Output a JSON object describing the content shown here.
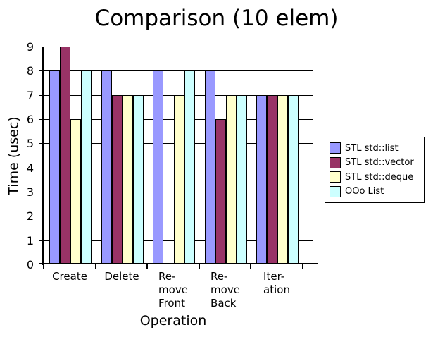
{
  "title": "Comparison (10 elem)",
  "axes": {
    "y_ticks": [
      "9",
      "8",
      "7",
      "6",
      "5",
      "4",
      "3",
      "2",
      "1",
      "0"
    ]
  },
  "chart_data": {
    "type": "bar",
    "title": "Comparison (10 elem)",
    "xlabel": "Operation",
    "ylabel": "Time (usec)",
    "ylim": [
      0,
      9
    ],
    "y_tick_step": 1,
    "grid": true,
    "legend_position": "right",
    "categories": [
      "Create",
      "Delete",
      "Re-\nmove\nFront",
      "Re-\nmove\nBack",
      "Iter-\nation"
    ],
    "categories_full": [
      "Create",
      "Delete",
      "Remove Front",
      "Remove Back",
      "Iteration"
    ],
    "series": [
      {
        "name": "STL std::list",
        "color": "#9999FF",
        "values": [
          8,
          8,
          8,
          8,
          7
        ]
      },
      {
        "name": "STL std::vector",
        "color": "#993366",
        "values": [
          9,
          7,
          0,
          6,
          7
        ]
      },
      {
        "name": "STL std::deque",
        "color": "#FFFFCC",
        "values": [
          6,
          7,
          7,
          7,
          7
        ]
      },
      {
        "name": "OOo List",
        "color": "#CCFFFF",
        "values": [
          8,
          7,
          8,
          7,
          7
        ]
      }
    ]
  }
}
